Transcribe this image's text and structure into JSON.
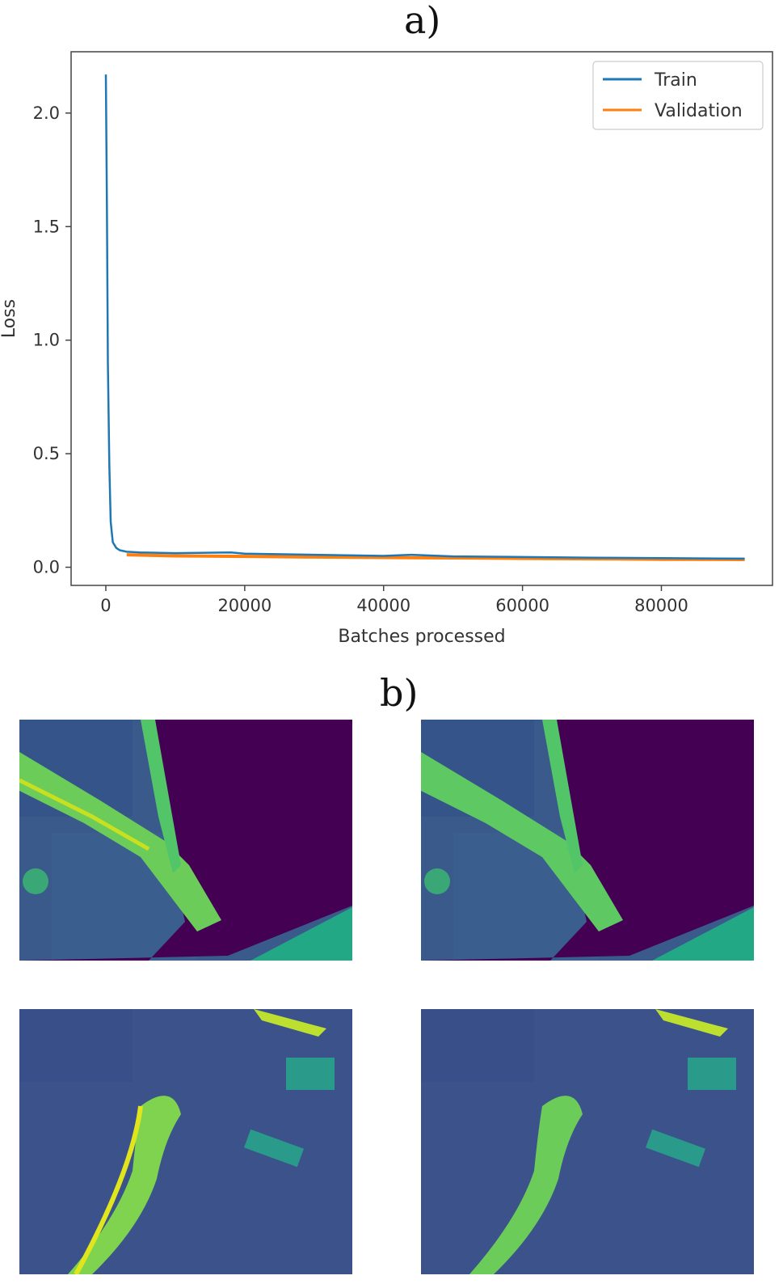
{
  "figure": {
    "panel_a_label": "a)",
    "panel_b_label": "b)"
  },
  "chart_data": {
    "type": "line",
    "xlabel": "Batches processed",
    "ylabel": "Loss",
    "xlim": [
      -5000,
      96000
    ],
    "ylim": [
      -0.08,
      2.27
    ],
    "xticks": [
      0,
      20000,
      40000,
      60000,
      80000
    ],
    "yticks": [
      0.0,
      0.5,
      1.0,
      1.5,
      2.0
    ],
    "xtick_labels": [
      "0",
      "20000",
      "40000",
      "60000",
      "80000"
    ],
    "ytick_labels": [
      "0.0",
      "0.5",
      "1.0",
      "1.5",
      "2.0"
    ],
    "legend_position": "top-right",
    "grid": false,
    "series": [
      {
        "name": "Train",
        "color": "#1f77b4",
        "x": [
          0,
          150,
          300,
          500,
          700,
          1000,
          1500,
          2000,
          3000,
          5000,
          10000,
          18000,
          20000,
          30000,
          40000,
          44000,
          50000,
          60000,
          70000,
          80000,
          92000
        ],
        "y": [
          2.17,
          1.6,
          0.9,
          0.45,
          0.2,
          0.11,
          0.085,
          0.075,
          0.068,
          0.065,
          0.062,
          0.065,
          0.06,
          0.055,
          0.05,
          0.055,
          0.048,
          0.045,
          0.042,
          0.04,
          0.038
        ]
      },
      {
        "name": "Validation",
        "color": "#ff7f0e",
        "x": [
          3000,
          10000,
          20000,
          30000,
          40000,
          50000,
          60000,
          70000,
          80000,
          92000
        ],
        "y": [
          0.055,
          0.05,
          0.048,
          0.045,
          0.043,
          0.041,
          0.039,
          0.037,
          0.035,
          0.034
        ]
      }
    ]
  },
  "images": [
    {
      "name": "top-left",
      "colormap": "viridis"
    },
    {
      "name": "top-right",
      "colormap": "viridis"
    },
    {
      "name": "bottom-left",
      "colormap": "viridis"
    },
    {
      "name": "bottom-right",
      "colormap": "viridis"
    }
  ]
}
